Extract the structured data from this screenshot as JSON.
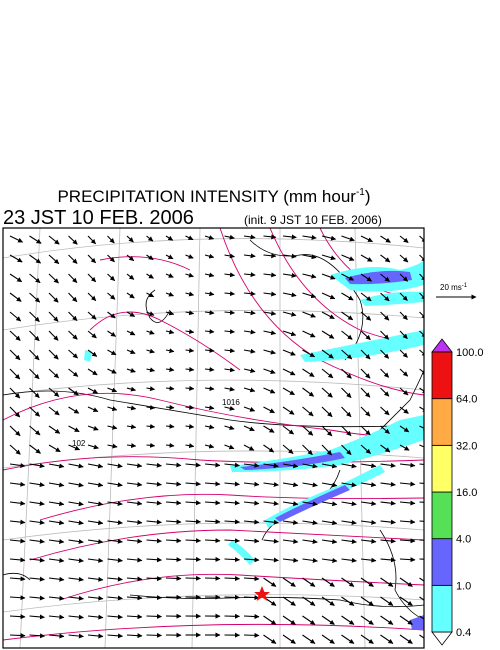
{
  "title": "PRECIPITATION INTENSITY (mm hour",
  "title_superscript": "-1",
  "title_end": ")",
  "time": "23 JST 10 FEB. 2006",
  "init": "(init. 9 JST 10 FEB. 2006)",
  "reference_vector": {
    "label": "20 ms",
    "superscript": "-1"
  },
  "contour_labels": [
    "1016",
    "102"
  ],
  "colorbar": {
    "levels": [
      0.4,
      {
        "value": 1.0,
        "label": "1.0"
      },
      {
        "value": 4.0,
        "label": "4.0"
      },
      {
        "value": 16.0,
        "label": "16.0"
      },
      {
        "value": 32.0,
        "label": "32.0"
      },
      {
        "value": 64.0,
        "label": "64.0"
      },
      {
        "value": 100.0,
        "label": "100.0"
      }
    ],
    "colors": [
      "#66ffff",
      "#6666ff",
      "#55e055",
      "#ffff66",
      "#ffaa44",
      "#ee1111"
    ],
    "under_color": "#ffffff",
    "over_color": "#bb33ee"
  }
}
